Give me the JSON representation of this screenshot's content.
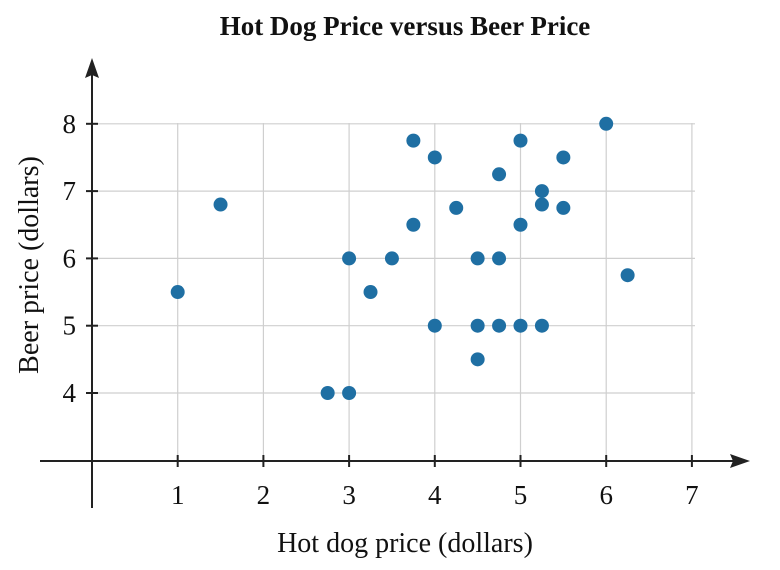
{
  "chart_data": {
    "type": "scatter",
    "title": "Hot Dog Price versus Beer Price",
    "xlabel": "Hot dog price (dollars)",
    "ylabel": "Beer price (dollars)",
    "xlim": [
      0,
      7.6
    ],
    "ylim": [
      3,
      9
    ],
    "x_ticks": [
      1,
      2,
      3,
      4,
      5,
      6,
      7
    ],
    "y_ticks": [
      4,
      5,
      6,
      7,
      8
    ],
    "grid": true,
    "point_color": "#1f6fa3",
    "points": [
      {
        "x": 1,
        "y": 5.5
      },
      {
        "x": 1.5,
        "y": 6.8
      },
      {
        "x": 2.75,
        "y": 4
      },
      {
        "x": 3,
        "y": 4
      },
      {
        "x": 3,
        "y": 6
      },
      {
        "x": 3.25,
        "y": 5.5
      },
      {
        "x": 3.5,
        "y": 6
      },
      {
        "x": 3.75,
        "y": 7.75
      },
      {
        "x": 3.75,
        "y": 6.5
      },
      {
        "x": 4,
        "y": 7.5
      },
      {
        "x": 4,
        "y": 5
      },
      {
        "x": 4.25,
        "y": 6.75
      },
      {
        "x": 4.5,
        "y": 6
      },
      {
        "x": 4.5,
        "y": 5
      },
      {
        "x": 4.5,
        "y": 4.5
      },
      {
        "x": 4.75,
        "y": 7.25
      },
      {
        "x": 4.75,
        "y": 6
      },
      {
        "x": 4.75,
        "y": 5
      },
      {
        "x": 5,
        "y": 7.75
      },
      {
        "x": 5,
        "y": 6.5
      },
      {
        "x": 5,
        "y": 5
      },
      {
        "x": 5.25,
        "y": 7
      },
      {
        "x": 5.25,
        "y": 6.8
      },
      {
        "x": 5.25,
        "y": 5
      },
      {
        "x": 5.5,
        "y": 7.5
      },
      {
        "x": 5.5,
        "y": 6.75
      },
      {
        "x": 6,
        "y": 8
      },
      {
        "x": 6.25,
        "y": 5.75
      }
    ]
  }
}
